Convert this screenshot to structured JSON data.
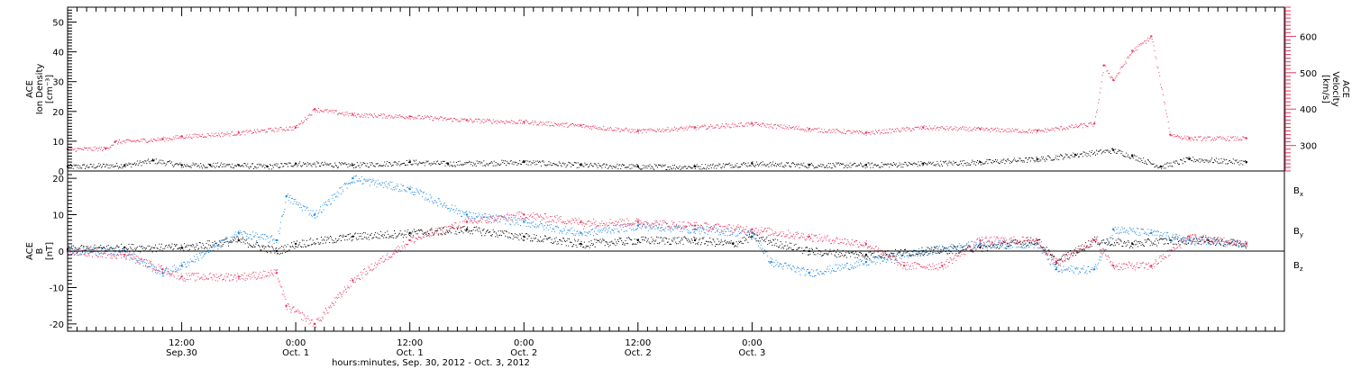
{
  "colors": {
    "black": "#000000",
    "red": "#e8365f",
    "blue": "#1e88e0"
  },
  "chart_data": [
    {
      "type": "scatter",
      "panel": "top",
      "ylabel_left": [
        "ACE",
        "Ion Density",
        "[cm⁻³]"
      ],
      "ylabel_right": [
        "ACE",
        "Velocity",
        "[km/s]"
      ],
      "ylim_left": [
        0,
        55
      ],
      "ylim_right": [
        230,
        680
      ],
      "yticks_left": [
        "0",
        "10",
        "20",
        "30",
        "40",
        "50"
      ],
      "yticks_right": [
        "300",
        "400",
        "500",
        "600"
      ],
      "series": [
        {
          "axis": "left",
          "color": "black",
          "x": [
            0,
            6,
            9,
            12,
            15,
            18,
            21,
            24,
            30,
            36,
            40,
            48,
            54,
            60,
            66,
            72,
            78,
            84,
            90,
            96,
            102,
            106,
            110,
            112,
            115,
            118,
            124
          ],
          "y": [
            1.5,
            2,
            3.5,
            2,
            2,
            2,
            1.5,
            2.5,
            2,
            3,
            2.5,
            3,
            2,
            1.5,
            1.5,
            2.5,
            2,
            2,
            2.5,
            3,
            4,
            5.5,
            7,
            5,
            1.5,
            4,
            3
          ]
        },
        {
          "axis": "right",
          "color": "red",
          "x": [
            0,
            4,
            5,
            10,
            12,
            18,
            24,
            26,
            30,
            36,
            42,
            48,
            54,
            60,
            66,
            72,
            78,
            84,
            90,
            96,
            102,
            108,
            109,
            110,
            112,
            114,
            116,
            118,
            124
          ],
          "y": [
            290,
            292,
            310,
            318,
            325,
            335,
            350,
            400,
            385,
            380,
            370,
            365,
            355,
            340,
            350,
            360,
            345,
            335,
            350,
            345,
            340,
            360,
            520,
            480,
            560,
            600,
            330,
            320,
            320
          ]
        }
      ]
    },
    {
      "type": "line",
      "panel": "bottom",
      "ylabel": [
        "ACE",
        "B",
        "[nT]"
      ],
      "ylim": [
        -22,
        22
      ],
      "yticks": [
        "-20",
        "-10",
        "0",
        "10",
        "20"
      ],
      "legend": [
        "Bx",
        "By",
        "Bz"
      ],
      "series": [
        {
          "name": "Bx",
          "color": "black",
          "x": [
            0,
            6,
            12,
            18,
            22,
            24,
            30,
            36,
            42,
            48,
            54,
            60,
            66,
            70,
            72,
            78,
            84,
            90,
            96,
            102,
            104,
            108,
            112,
            116,
            120,
            124
          ],
          "y": [
            0.5,
            1,
            1,
            3,
            0,
            2,
            4,
            5,
            6,
            4,
            2,
            3,
            3,
            2,
            4,
            0,
            -1,
            0,
            1,
            3,
            -3,
            3,
            2,
            3,
            3,
            2
          ]
        },
        {
          "name": "By",
          "color": "blue",
          "x": [
            0,
            6,
            10,
            12,
            18,
            22,
            23,
            26,
            30,
            36,
            42,
            48,
            54,
            60,
            66,
            72,
            74,
            78,
            84,
            90,
            96,
            102,
            104,
            108,
            110,
            114,
            118,
            124
          ],
          "y": [
            0,
            0,
            -6,
            -4,
            5,
            3,
            15,
            10,
            20,
            17,
            10,
            8,
            5,
            7,
            6,
            5,
            -3,
            -6,
            -3,
            0,
            2,
            2,
            -5,
            -5,
            6,
            5,
            3,
            2
          ]
        },
        {
          "name": "Bz",
          "color": "red",
          "x": [
            0,
            6,
            10,
            12,
            18,
            22,
            23,
            26,
            30,
            36,
            42,
            48,
            54,
            60,
            66,
            72,
            78,
            84,
            88,
            92,
            96,
            102,
            104,
            108,
            110,
            114,
            118,
            124
          ],
          "y": [
            0,
            -1,
            -5,
            -7,
            -7,
            -6,
            -15,
            -20,
            -8,
            3,
            8,
            10,
            8,
            8,
            7,
            6,
            4,
            2,
            -4,
            -4,
            3,
            3,
            -3,
            3,
            -4,
            -4,
            4,
            2
          ]
        }
      ]
    }
  ],
  "x_axis": {
    "range_hours": [
      0,
      128
    ],
    "ticks": [
      {
        "hour": 12,
        "time": "12:00",
        "date": "Sep.30"
      },
      {
        "hour": 24,
        "time": "0:00",
        "date": "Oct. 1"
      },
      {
        "hour": 36,
        "time": "12:00",
        "date": "Oct. 1"
      },
      {
        "hour": 48,
        "time": "0:00",
        "date": "Oct. 2"
      },
      {
        "hour": 60,
        "time": "12:00",
        "date": "Oct. 2"
      },
      {
        "hour": 72,
        "time": "0:00",
        "date": "Oct. 3"
      }
    ],
    "label": "hours:minutes, Sep. 30, 2012 - Oct. 3, 2012"
  }
}
